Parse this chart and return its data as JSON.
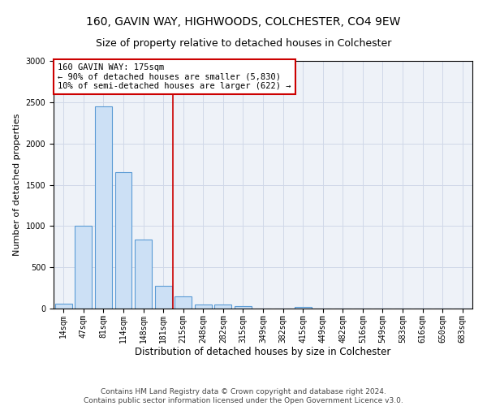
{
  "title1": "160, GAVIN WAY, HIGHWOODS, COLCHESTER, CO4 9EW",
  "title2": "Size of property relative to detached houses in Colchester",
  "xlabel": "Distribution of detached houses by size in Colchester",
  "ylabel": "Number of detached properties",
  "categories": [
    "14sqm",
    "47sqm",
    "81sqm",
    "114sqm",
    "148sqm",
    "181sqm",
    "215sqm",
    "248sqm",
    "282sqm",
    "315sqm",
    "349sqm",
    "382sqm",
    "415sqm",
    "449sqm",
    "482sqm",
    "516sqm",
    "549sqm",
    "583sqm",
    "616sqm",
    "650sqm",
    "683sqm"
  ],
  "values": [
    60,
    1000,
    2450,
    1650,
    840,
    280,
    145,
    50,
    50,
    30,
    0,
    0,
    20,
    0,
    0,
    0,
    0,
    0,
    0,
    0,
    0
  ],
  "bar_color": "#cce0f5",
  "bar_edge_color": "#5b9bd5",
  "vline_x": 5.5,
  "vline_color": "#cc0000",
  "annotation_text": "160 GAVIN WAY: 175sqm\n← 90% of detached houses are smaller (5,830)\n10% of semi-detached houses are larger (622) →",
  "annotation_box_color": "white",
  "annotation_box_edge_color": "#cc0000",
  "ylim": [
    0,
    3000
  ],
  "yticks": [
    0,
    500,
    1000,
    1500,
    2000,
    2500,
    3000
  ],
  "grid_color": "#d0d8e8",
  "background_color": "#eef2f8",
  "footer_text": "Contains HM Land Registry data © Crown copyright and database right 2024.\nContains public sector information licensed under the Open Government Licence v3.0.",
  "title1_fontsize": 10,
  "title2_fontsize": 9,
  "xlabel_fontsize": 8.5,
  "ylabel_fontsize": 8,
  "tick_fontsize": 7,
  "footer_fontsize": 6.5,
  "annotation_fontsize": 7.5
}
